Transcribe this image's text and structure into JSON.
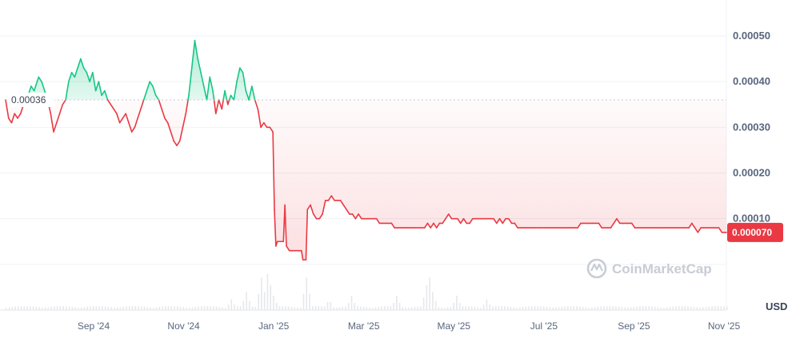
{
  "chart_data": {
    "type": "line",
    "unit_label": "USD",
    "reference_price_label": "0.00036",
    "reference_price": 0.00036,
    "current_price_label": "0.000070",
    "current_price": 7e-05,
    "watermark": "CoinMarketCap",
    "x_ticks": [
      "Sep '24",
      "Nov '24",
      "Jan '25",
      "Mar '25",
      "May '25",
      "Jul '25",
      "Sep '25",
      "Nov '25"
    ],
    "y_ticks": [
      "0.00050",
      "0.00040",
      "0.00030",
      "0.00020",
      "0.00010"
    ],
    "y_tick_values": [
      0.0005,
      0.0004,
      0.0003,
      0.0002,
      0.0001
    ],
    "ylim": [
      -0.0001,
      0.00057
    ],
    "x_range_days": [
      0,
      480
    ],
    "colors": {
      "up": "#16c784",
      "down": "#ea3943",
      "grid": "#eff2f5",
      "volume": "#e6e8ec",
      "tick_text": "#58667e"
    },
    "series": [
      {
        "points": [
          [
            0,
            0.00036
          ],
          [
            2,
            0.00032
          ],
          [
            4,
            0.00031
          ],
          [
            6,
            0.00033
          ],
          [
            8,
            0.00032
          ],
          [
            10,
            0.00033
          ],
          [
            12,
            0.00035
          ],
          [
            15,
            0.00037
          ],
          [
            17,
            0.00039
          ],
          [
            19,
            0.00038
          ],
          [
            21,
            0.0004
          ],
          [
            22,
            0.00041
          ],
          [
            24,
            0.0004
          ],
          [
            26,
            0.00038
          ],
          [
            28,
            0.00036
          ],
          [
            30,
            0.00033
          ],
          [
            32,
            0.00029
          ],
          [
            34,
            0.00031
          ],
          [
            36,
            0.00033
          ],
          [
            38,
            0.00035
          ],
          [
            40,
            0.00036
          ],
          [
            42,
            0.0004
          ],
          [
            44,
            0.00042
          ],
          [
            46,
            0.00041
          ],
          [
            48,
            0.00043
          ],
          [
            50,
            0.00045
          ],
          [
            52,
            0.00043
          ],
          [
            54,
            0.00042
          ],
          [
            56,
            0.0004
          ],
          [
            58,
            0.00042
          ],
          [
            60,
            0.00038
          ],
          [
            62,
            0.0004
          ],
          [
            64,
            0.00037
          ],
          [
            66,
            0.00038
          ],
          [
            68,
            0.00036
          ],
          [
            70,
            0.00035
          ],
          [
            72,
            0.00034
          ],
          [
            74,
            0.00033
          ],
          [
            76,
            0.00031
          ],
          [
            78,
            0.00032
          ],
          [
            80,
            0.00033
          ],
          [
            82,
            0.00031
          ],
          [
            84,
            0.00029
          ],
          [
            86,
            0.0003
          ],
          [
            88,
            0.00032
          ],
          [
            90,
            0.00034
          ],
          [
            92,
            0.00036
          ],
          [
            94,
            0.00038
          ],
          [
            96,
            0.0004
          ],
          [
            98,
            0.00039
          ],
          [
            100,
            0.00037
          ],
          [
            102,
            0.00036
          ],
          [
            104,
            0.00034
          ],
          [
            106,
            0.00032
          ],
          [
            108,
            0.00031
          ],
          [
            110,
            0.00029
          ],
          [
            112,
            0.00027
          ],
          [
            114,
            0.00026
          ],
          [
            116,
            0.00027
          ],
          [
            118,
            0.0003
          ],
          [
            120,
            0.00033
          ],
          [
            122,
            0.00037
          ],
          [
            124,
            0.00043
          ],
          [
            126,
            0.00049
          ],
          [
            128,
            0.00045
          ],
          [
            130,
            0.00042
          ],
          [
            132,
            0.00039
          ],
          [
            134,
            0.00036
          ],
          [
            136,
            0.00041
          ],
          [
            138,
            0.00038
          ],
          [
            140,
            0.00033
          ],
          [
            142,
            0.00036
          ],
          [
            144,
            0.00034
          ],
          [
            146,
            0.00038
          ],
          [
            148,
            0.00035
          ],
          [
            150,
            0.00037
          ],
          [
            152,
            0.00036
          ],
          [
            154,
            0.0004
          ],
          [
            156,
            0.00043
          ],
          [
            158,
            0.00042
          ],
          [
            160,
            0.00038
          ],
          [
            162,
            0.00036
          ],
          [
            164,
            0.00039
          ],
          [
            166,
            0.00036
          ],
          [
            168,
            0.00034
          ],
          [
            170,
            0.0003
          ],
          [
            172,
            0.00031
          ],
          [
            174,
            0.0003
          ],
          [
            176,
            0.0003
          ],
          [
            178,
            0.00029
          ],
          [
            179,
            0.00012
          ],
          [
            180,
            4e-05
          ],
          [
            181,
            5e-05
          ],
          [
            183,
            5e-05
          ],
          [
            185,
            5e-05
          ],
          [
            186,
            0.00013
          ],
          [
            187,
            4e-05
          ],
          [
            189,
            3e-05
          ],
          [
            191,
            3e-05
          ],
          [
            193,
            3e-05
          ],
          [
            195,
            3e-05
          ],
          [
            197,
            3e-05
          ],
          [
            198,
            1e-05
          ],
          [
            200,
            1e-05
          ],
          [
            201,
            0.00012
          ],
          [
            203,
            0.00013
          ],
          [
            205,
            0.00011
          ],
          [
            207,
            0.0001
          ],
          [
            209,
            0.0001
          ],
          [
            211,
            0.00011
          ],
          [
            213,
            0.00014
          ],
          [
            215,
            0.00014
          ],
          [
            217,
            0.00015
          ],
          [
            219,
            0.00014
          ],
          [
            221,
            0.00014
          ],
          [
            223,
            0.00014
          ],
          [
            225,
            0.00013
          ],
          [
            227,
            0.00012
          ],
          [
            229,
            0.00011
          ],
          [
            231,
            0.00011
          ],
          [
            233,
            0.0001
          ],
          [
            235,
            0.00011
          ],
          [
            237,
            0.0001
          ],
          [
            239,
            0.0001
          ],
          [
            241,
            0.0001
          ],
          [
            243,
            0.0001
          ],
          [
            245,
            0.0001
          ],
          [
            247,
            0.0001
          ],
          [
            249,
            9e-05
          ],
          [
            251,
            9e-05
          ],
          [
            253,
            9e-05
          ],
          [
            255,
            9e-05
          ],
          [
            257,
            9e-05
          ],
          [
            259,
            8e-05
          ],
          [
            261,
            8e-05
          ],
          [
            263,
            8e-05
          ],
          [
            265,
            8e-05
          ],
          [
            267,
            8e-05
          ],
          [
            269,
            8e-05
          ],
          [
            271,
            8e-05
          ],
          [
            273,
            8e-05
          ],
          [
            275,
            8e-05
          ],
          [
            277,
            8e-05
          ],
          [
            279,
            8e-05
          ],
          [
            281,
            9e-05
          ],
          [
            283,
            8e-05
          ],
          [
            285,
            9e-05
          ],
          [
            287,
            8e-05
          ],
          [
            289,
            9e-05
          ],
          [
            291,
            9e-05
          ],
          [
            293,
            0.0001
          ],
          [
            295,
            0.00011
          ],
          [
            297,
            0.0001
          ],
          [
            299,
            0.0001
          ],
          [
            301,
            0.0001
          ],
          [
            303,
            9e-05
          ],
          [
            305,
            0.0001
          ],
          [
            307,
            9e-05
          ],
          [
            309,
            9e-05
          ],
          [
            311,
            0.0001
          ],
          [
            313,
            0.0001
          ],
          [
            315,
            0.0001
          ],
          [
            317,
            0.0001
          ],
          [
            319,
            0.0001
          ],
          [
            321,
            0.0001
          ],
          [
            323,
            0.0001
          ],
          [
            325,
            0.0001
          ],
          [
            327,
            9e-05
          ],
          [
            329,
            0.0001
          ],
          [
            331,
            9e-05
          ],
          [
            333,
            0.0001
          ],
          [
            335,
            0.0001
          ],
          [
            337,
            9e-05
          ],
          [
            339,
            9e-05
          ],
          [
            341,
            8e-05
          ],
          [
            343,
            8e-05
          ],
          [
            345,
            8e-05
          ],
          [
            347,
            8e-05
          ],
          [
            349,
            8e-05
          ],
          [
            351,
            8e-05
          ],
          [
            353,
            8e-05
          ],
          [
            355,
            8e-05
          ],
          [
            357,
            8e-05
          ],
          [
            359,
            8e-05
          ],
          [
            361,
            8e-05
          ],
          [
            363,
            8e-05
          ],
          [
            365,
            8e-05
          ],
          [
            367,
            8e-05
          ],
          [
            369,
            8e-05
          ],
          [
            371,
            8e-05
          ],
          [
            373,
            8e-05
          ],
          [
            375,
            8e-05
          ],
          [
            377,
            8e-05
          ],
          [
            379,
            8e-05
          ],
          [
            381,
            8e-05
          ],
          [
            383,
            9e-05
          ],
          [
            385,
            9e-05
          ],
          [
            387,
            9e-05
          ],
          [
            389,
            9e-05
          ],
          [
            391,
            9e-05
          ],
          [
            393,
            9e-05
          ],
          [
            395,
            9e-05
          ],
          [
            397,
            8e-05
          ],
          [
            399,
            8e-05
          ],
          [
            401,
            8e-05
          ],
          [
            403,
            8e-05
          ],
          [
            405,
            9e-05
          ],
          [
            407,
            0.0001
          ],
          [
            409,
            9e-05
          ],
          [
            411,
            9e-05
          ],
          [
            413,
            9e-05
          ],
          [
            415,
            9e-05
          ],
          [
            417,
            9e-05
          ],
          [
            419,
            8e-05
          ],
          [
            421,
            8e-05
          ],
          [
            423,
            8e-05
          ],
          [
            425,
            8e-05
          ],
          [
            427,
            8e-05
          ],
          [
            429,
            8e-05
          ],
          [
            431,
            8e-05
          ],
          [
            433,
            8e-05
          ],
          [
            435,
            8e-05
          ],
          [
            437,
            8e-05
          ],
          [
            439,
            8e-05
          ],
          [
            441,
            8e-05
          ],
          [
            443,
            8e-05
          ],
          [
            445,
            8e-05
          ],
          [
            447,
            8e-05
          ],
          [
            449,
            8e-05
          ],
          [
            451,
            8e-05
          ],
          [
            453,
            8e-05
          ],
          [
            455,
            8e-05
          ],
          [
            457,
            9e-05
          ],
          [
            459,
            8e-05
          ],
          [
            461,
            7e-05
          ],
          [
            463,
            8e-05
          ],
          [
            465,
            8e-05
          ],
          [
            467,
            8e-05
          ],
          [
            469,
            8e-05
          ],
          [
            471,
            8e-05
          ],
          [
            473,
            8e-05
          ],
          [
            475,
            8e-05
          ],
          [
            477,
            7e-05
          ],
          [
            480,
            7e-05
          ]
        ]
      }
    ],
    "volume": [
      [
        150,
        0.3
      ],
      [
        160,
        0.5
      ],
      [
        170,
        0.9
      ],
      [
        174,
        1.0
      ],
      [
        176,
        0.7
      ],
      [
        178,
        0.4
      ],
      [
        200,
        0.9
      ],
      [
        201,
        0.4
      ],
      [
        215,
        0.3
      ],
      [
        230,
        0.4
      ],
      [
        260,
        0.4
      ],
      [
        280,
        0.7
      ],
      [
        282,
        0.9
      ],
      [
        284,
        0.5
      ],
      [
        300,
        0.4
      ],
      [
        320,
        0.3
      ]
    ]
  }
}
